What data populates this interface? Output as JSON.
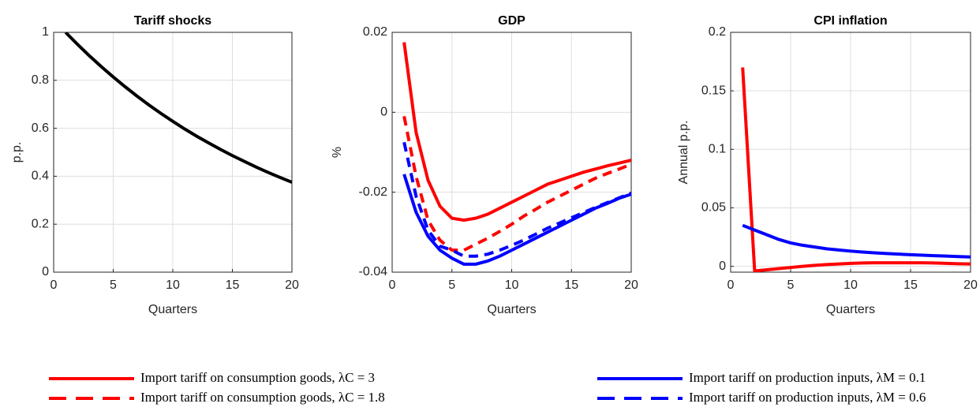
{
  "chart_data": [
    {
      "type": "line",
      "title": "Tariff shocks",
      "xlabel": "Quarters",
      "ylabel": "p.p.",
      "x": [
        1,
        2,
        3,
        4,
        5,
        6,
        7,
        8,
        9,
        10,
        11,
        12,
        13,
        14,
        15,
        16,
        17,
        18,
        19,
        20
      ],
      "xlim": [
        0,
        20
      ],
      "xticks": [
        0,
        5,
        10,
        15,
        20
      ],
      "ylim": [
        0,
        1
      ],
      "yticks": [
        0,
        0.2,
        0.4,
        0.6,
        0.8,
        1
      ],
      "grid": true,
      "series": [
        {
          "color": "#000000",
          "style": "solid",
          "values": [
            1,
            0.95,
            0.902,
            0.857,
            0.814,
            0.773,
            0.734,
            0.697,
            0.662,
            0.629,
            0.597,
            0.567,
            0.539,
            0.512,
            0.486,
            0.462,
            0.438,
            0.416,
            0.395,
            0.375
          ]
        }
      ]
    },
    {
      "type": "line",
      "title": "GDP",
      "xlabel": "Quarters",
      "ylabel": "%",
      "x": [
        1,
        2,
        3,
        4,
        5,
        6,
        7,
        8,
        9,
        10,
        11,
        12,
        13,
        14,
        15,
        16,
        17,
        18,
        19,
        20
      ],
      "xlim": [
        0,
        20
      ],
      "xticks": [
        0,
        5,
        10,
        15,
        20
      ],
      "ylim": [
        -0.04,
        0.02
      ],
      "yticks": [
        -0.04,
        -0.02,
        0,
        0.02
      ],
      "grid": true,
      "series": [
        {
          "name": "Import tariff on consumption goods, λC = 3",
          "color": "#ff0000",
          "style": "solid",
          "values": [
            0.0175,
            -0.005,
            -0.017,
            -0.0235,
            -0.0265,
            -0.027,
            -0.0265,
            -0.0255,
            -0.024,
            -0.0225,
            -0.021,
            -0.0195,
            -0.018,
            -0.017,
            -0.016,
            -0.015,
            -0.0142,
            -0.0134,
            -0.0127,
            -0.012
          ]
        },
        {
          "name": "Import tariff on consumption goods, λC = 1.8",
          "color": "#ff0000",
          "style": "dashed",
          "values": [
            -0.001,
            -0.016,
            -0.027,
            -0.032,
            -0.0345,
            -0.0345,
            -0.033,
            -0.0315,
            -0.0298,
            -0.028,
            -0.026,
            -0.0243,
            -0.0225,
            -0.021,
            -0.0195,
            -0.018,
            -0.0165,
            -0.0153,
            -0.0142,
            -0.013
          ]
        },
        {
          "name": "Import tariff on production inputs, λM = 0.1",
          "color": "#0000ff",
          "style": "solid",
          "values": [
            -0.0155,
            -0.025,
            -0.031,
            -0.0345,
            -0.0365,
            -0.038,
            -0.038,
            -0.0372,
            -0.036,
            -0.0345,
            -0.033,
            -0.0315,
            -0.03,
            -0.0285,
            -0.027,
            -0.0255,
            -0.024,
            -0.0228,
            -0.0215,
            -0.0205
          ]
        },
        {
          "name": "Import tariff on production inputs, λM = 0.6",
          "color": "#0000ff",
          "style": "dashed",
          "values": [
            -0.0075,
            -0.021,
            -0.0295,
            -0.0335,
            -0.0345,
            -0.036,
            -0.036,
            -0.0355,
            -0.0345,
            -0.0333,
            -0.032,
            -0.0305,
            -0.029,
            -0.0277,
            -0.0264,
            -0.0251,
            -0.0238,
            -0.0226,
            -0.0214,
            -0.0202
          ]
        }
      ]
    },
    {
      "type": "line",
      "title": "CPI inflation",
      "xlabel": "Quarters",
      "ylabel": "Annual p.p.",
      "x": [
        1,
        2,
        3,
        4,
        5,
        6,
        7,
        8,
        9,
        10,
        11,
        12,
        13,
        14,
        15,
        16,
        17,
        18,
        19,
        20
      ],
      "xlim": [
        0,
        20
      ],
      "xticks": [
        0,
        5,
        10,
        15,
        20
      ],
      "ylim": [
        -0.005,
        0.2
      ],
      "yticks": [
        0,
        0.05,
        0.1,
        0.15,
        0.2
      ],
      "grid": true,
      "series": [
        {
          "color": "#ff0000",
          "style": "solid",
          "values": [
            0.17,
            -0.004,
            -0.003,
            -0.002,
            -0.001,
            0,
            0.0008,
            0.0015,
            0.002,
            0.0025,
            0.0028,
            0.003,
            0.003,
            0.003,
            0.003,
            0.003,
            0.0028,
            0.0025,
            0.0022,
            0.002
          ]
        },
        {
          "color": "#0000ff",
          "style": "solid",
          "values": [
            0.035,
            0.031,
            0.027,
            0.023,
            0.02,
            0.018,
            0.0165,
            0.015,
            0.014,
            0.013,
            0.0122,
            0.0115,
            0.0109,
            0.0104,
            0.0099,
            0.0095,
            0.0091,
            0.0087,
            0.0083,
            0.008
          ]
        }
      ]
    }
  ]
}
